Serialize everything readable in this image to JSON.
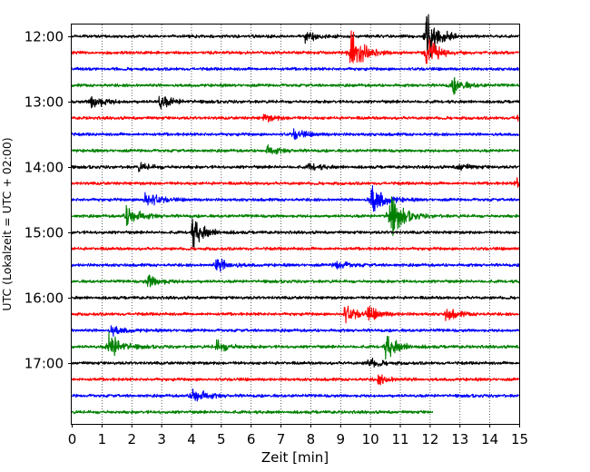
{
  "chart_data": {
    "type": "line",
    "subtype": "helicorder",
    "xlabel": "Zeit  [min]",
    "ylabel": "UTC (Lokalzeit = UTC + 02:00)",
    "xlim": [
      0,
      15
    ],
    "x_ticks": [
      "0",
      "1",
      "2",
      "3",
      "4",
      "5",
      "6",
      "7",
      "8",
      "9",
      "10",
      "11",
      "12",
      "13",
      "14",
      "15"
    ],
    "y_ticks": [
      "12:00",
      "13:00",
      "14:00",
      "15:00",
      "16:00",
      "17:00"
    ],
    "grid": "vertical-dotted",
    "colors": [
      "#000000",
      "#ff0000",
      "#0000ff",
      "#008000"
    ],
    "trace_interval_min": 15,
    "traces": [
      {
        "start": "12:00",
        "color": "#000000",
        "end_min": 15,
        "events": [
          [
            7.9,
            5
          ],
          [
            11.95,
            22
          ]
        ]
      },
      {
        "start": "12:15",
        "color": "#ff0000",
        "end_min": 15,
        "events": [
          [
            9.4,
            20
          ],
          [
            11.95,
            12
          ]
        ]
      },
      {
        "start": "12:30",
        "color": "#0000ff",
        "end_min": 15,
        "events": []
      },
      {
        "start": "12:45",
        "color": "#008000",
        "end_min": 15,
        "events": [
          [
            12.8,
            7
          ]
        ]
      },
      {
        "start": "13:00",
        "color": "#000000",
        "end_min": 15,
        "events": [
          [
            0.7,
            7
          ],
          [
            3.0,
            6
          ]
        ]
      },
      {
        "start": "13:15",
        "color": "#ff0000",
        "end_min": 15,
        "events": [
          [
            6.5,
            3
          ],
          [
            15.0,
            6
          ]
        ]
      },
      {
        "start": "13:30",
        "color": "#0000ff",
        "end_min": 15,
        "events": [
          [
            7.5,
            4
          ]
        ]
      },
      {
        "start": "13:45",
        "color": "#008000",
        "end_min": 15,
        "events": [
          [
            6.6,
            4
          ]
        ]
      },
      {
        "start": "14:00",
        "color": "#000000",
        "end_min": 15,
        "events": [
          [
            2.3,
            3
          ],
          [
            8.0,
            3
          ],
          [
            13.0,
            3
          ]
        ]
      },
      {
        "start": "14:15",
        "color": "#ff0000",
        "end_min": 15,
        "events": [
          [
            15.0,
            6
          ]
        ]
      },
      {
        "start": "14:30",
        "color": "#0000ff",
        "end_min": 15,
        "events": [
          [
            2.5,
            8
          ],
          [
            10.1,
            14
          ]
        ]
      },
      {
        "start": "14:45",
        "color": "#008000",
        "end_min": 15,
        "events": [
          [
            1.9,
            10
          ],
          [
            10.7,
            20
          ]
        ]
      },
      {
        "start": "15:00",
        "color": "#000000",
        "end_min": 15,
        "events": [
          [
            4.1,
            12
          ]
        ]
      },
      {
        "start": "15:15",
        "color": "#ff0000",
        "end_min": 15,
        "events": []
      },
      {
        "start": "15:30",
        "color": "#0000ff",
        "end_min": 15,
        "events": [
          [
            4.9,
            6
          ],
          [
            8.9,
            4
          ]
        ]
      },
      {
        "start": "15:45",
        "color": "#008000",
        "end_min": 15,
        "events": [
          [
            2.6,
            6
          ]
        ]
      },
      {
        "start": "16:00",
        "color": "#000000",
        "end_min": 15,
        "events": []
      },
      {
        "start": "16:15",
        "color": "#ff0000",
        "end_min": 15,
        "events": [
          [
            9.2,
            7
          ],
          [
            10.0,
            5
          ],
          [
            12.6,
            5
          ]
        ]
      },
      {
        "start": "16:30",
        "color": "#0000ff",
        "end_min": 15,
        "events": [
          [
            1.4,
            4
          ]
        ]
      },
      {
        "start": "16:45",
        "color": "#008000",
        "end_min": 15,
        "events": [
          [
            1.3,
            12
          ],
          [
            4.9,
            5
          ],
          [
            10.6,
            10
          ]
        ]
      },
      {
        "start": "17:00",
        "color": "#000000",
        "end_min": 15,
        "events": [
          [
            10.0,
            4
          ]
        ]
      },
      {
        "start": "17:15",
        "color": "#ff0000",
        "end_min": 15,
        "events": [
          [
            10.3,
            4
          ]
        ]
      },
      {
        "start": "17:30",
        "color": "#0000ff",
        "end_min": 15,
        "events": [
          [
            4.1,
            8
          ]
        ]
      },
      {
        "start": "17:45",
        "color": "#008000",
        "end_min": 12.1,
        "events": []
      }
    ]
  }
}
